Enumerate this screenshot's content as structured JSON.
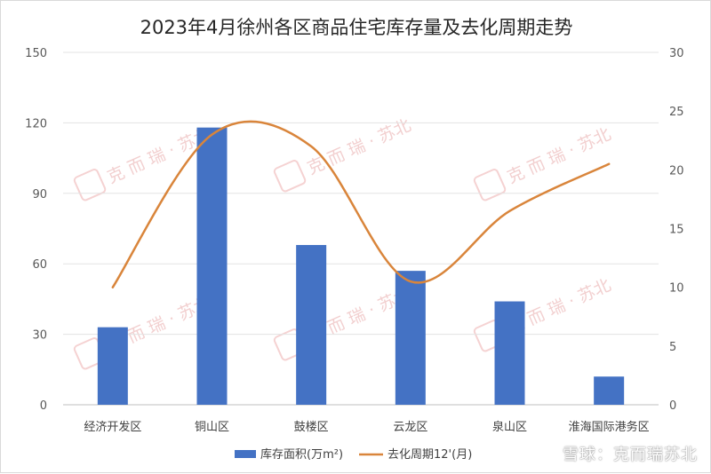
{
  "title": "2023年4月徐州各区商品住宅库存量及去化周期走势",
  "footer_text": "雪球：克而瑞苏北",
  "watermark_text": "克 而 瑞 · 苏北",
  "chart_data": {
    "type": "bar",
    "categories": [
      "经济开发区",
      "铜山区",
      "鼓楼区",
      "云龙区",
      "泉山区",
      "淮海国际港务区"
    ],
    "series": [
      {
        "name": "库存面积(万m²)",
        "type": "bar",
        "axis": "left",
        "color": "#4472c4",
        "values": [
          33,
          118,
          68,
          57,
          44,
          12
        ]
      },
      {
        "name": "去化周期12'(月)",
        "type": "line",
        "axis": "right",
        "color": "#d9853b",
        "values": [
          10,
          23,
          22,
          10.5,
          16.5,
          20.5
        ]
      }
    ],
    "y_left": {
      "min": 0,
      "max": 150,
      "ticks": [
        0,
        30,
        60,
        90,
        120,
        150
      ]
    },
    "y_right": {
      "min": 0,
      "max": 30,
      "ticks": [
        0,
        5,
        10,
        15,
        20,
        25,
        30
      ]
    },
    "grid": true,
    "legend": "bottom"
  }
}
